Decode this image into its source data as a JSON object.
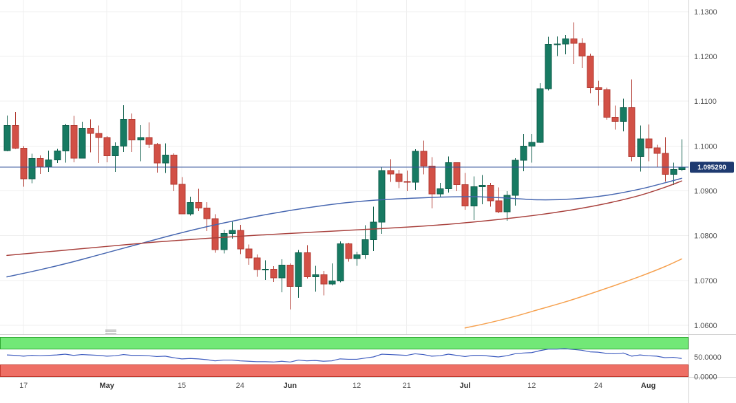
{
  "style": {
    "bg": "#ffffff",
    "grid": "#efefef",
    "separator": "#cfcfcf",
    "axis_text": "#555555",
    "bull_fill": "#177a62",
    "bull_stroke": "#0f5f4c",
    "bear_fill": "#d25046",
    "bear_stroke": "#b13a31",
    "ma_blue": "#4666b0",
    "ma_red": "#a8403c",
    "ma_orange": "#f6a14f",
    "price_line": "#35569b",
    "badge_bg": "#1e3a70",
    "badge_text": "#ffffff",
    "rsi_line": "#3d5bbf",
    "ob_fill": "#72e877",
    "ob_stroke": "#2ca52f",
    "os_fill": "#ee6f65",
    "os_stroke": "#c23a2f",
    "handle": "#999999"
  },
  "chart_data": {
    "type": "candlestick",
    "price_axis": {
      "range": [
        1.058,
        1.1326
      ],
      "ticks": [
        {
          "value": 1.13,
          "label": "1.1300"
        },
        {
          "value": 1.12,
          "label": "1.1200"
        },
        {
          "value": 1.11,
          "label": "1.1100"
        },
        {
          "value": 1.1,
          "label": "1.1000"
        },
        {
          "value": 1.09,
          "label": "1.0900"
        },
        {
          "value": 1.08,
          "label": "1.0800"
        },
        {
          "value": 1.07,
          "label": "1.0700"
        },
        {
          "value": 1.06,
          "label": "1.0600"
        }
      ]
    },
    "current_price": {
      "value": 1.09529,
      "label": "1.095290"
    },
    "x_ticks": [
      {
        "i": 2,
        "label": "17",
        "month": false
      },
      {
        "i": 12,
        "label": "May",
        "month": true
      },
      {
        "i": 21,
        "label": "15",
        "month": false
      },
      {
        "i": 28,
        "label": "24",
        "month": false
      },
      {
        "i": 34,
        "label": "Jun",
        "month": true
      },
      {
        "i": 42,
        "label": "12",
        "month": false
      },
      {
        "i": 48,
        "label": "21",
        "month": false
      },
      {
        "i": 55,
        "label": "Jul",
        "month": true
      },
      {
        "i": 63,
        "label": "12",
        "month": false
      },
      {
        "i": 71,
        "label": "24",
        "month": false
      },
      {
        "i": 77,
        "label": "Aug",
        "month": true
      }
    ],
    "candles": [
      [
        1.099,
        1.1068,
        1.0988,
        1.1046
      ],
      [
        1.1046,
        1.1076,
        1.0994,
        1.0995
      ],
      [
        1.0995,
        1.1,
        1.0909,
        1.0927
      ],
      [
        1.0927,
        1.0983,
        1.0917,
        1.0972
      ],
      [
        1.0972,
        1.0979,
        1.0938,
        1.0954
      ],
      [
        1.0954,
        1.099,
        1.0942,
        1.0969
      ],
      [
        1.0969,
        1.0994,
        1.0962,
        1.0989
      ],
      [
        1.0989,
        1.105,
        1.0963,
        1.1046
      ],
      [
        1.1046,
        1.1067,
        1.0964,
        1.0973
      ],
      [
        1.0973,
        1.1054,
        1.0972,
        1.104
      ],
      [
        1.104,
        1.106,
        1.0986,
        1.1028
      ],
      [
        1.1028,
        1.1046,
        1.0962,
        1.1019
      ],
      [
        1.1019,
        1.1022,
        1.0964,
        1.0978
      ],
      [
        1.0978,
        1.1008,
        1.0942,
        1.1
      ],
      [
        1.1,
        1.1091,
        1.0987,
        1.106
      ],
      [
        1.106,
        1.1073,
        1.0987,
        1.1014
      ],
      [
        1.1014,
        1.1047,
        1.0966,
        1.1019
      ],
      [
        1.1019,
        1.1053,
        1.0996,
        1.1004
      ],
      [
        1.1004,
        1.1007,
        1.0941,
        1.0962
      ],
      [
        1.0962,
        1.1006,
        1.094,
        1.098
      ],
      [
        1.098,
        1.0984,
        1.0899,
        1.0915
      ],
      [
        1.0915,
        1.0931,
        1.0848,
        1.0849
      ],
      [
        1.0849,
        1.0887,
        1.0845,
        1.0874
      ],
      [
        1.0874,
        1.0905,
        1.0855,
        1.0862
      ],
      [
        1.0862,
        1.0875,
        1.081,
        1.0838
      ],
      [
        1.0838,
        1.0848,
        1.0762,
        1.0769
      ],
      [
        1.0769,
        1.0813,
        1.076,
        1.0805
      ],
      [
        1.0805,
        1.0831,
        1.0793,
        1.0812
      ],
      [
        1.0812,
        1.0824,
        1.0759,
        1.077
      ],
      [
        1.077,
        1.078,
        1.0735,
        1.075
      ],
      [
        1.075,
        1.0758,
        1.0708,
        1.0724
      ],
      [
        1.0724,
        1.0745,
        1.0701,
        1.0725
      ],
      [
        1.0725,
        1.0732,
        1.0697,
        1.0706
      ],
      [
        1.0706,
        1.0747,
        1.0674,
        1.0734
      ],
      [
        1.0734,
        1.0738,
        1.0635,
        1.0687
      ],
      [
        1.0687,
        1.0768,
        1.0661,
        1.0762
      ],
      [
        1.0762,
        1.0779,
        1.0704,
        1.0708
      ],
      [
        1.0708,
        1.0733,
        1.0675,
        1.0713
      ],
      [
        1.0713,
        1.0721,
        1.0667,
        1.0692
      ],
      [
        1.0692,
        1.0738,
        1.0689,
        1.0699
      ],
      [
        1.0699,
        1.0787,
        1.0696,
        1.0782
      ],
      [
        1.0782,
        1.0784,
        1.0742,
        1.0749
      ],
      [
        1.0749,
        1.0764,
        1.0733,
        1.0757
      ],
      [
        1.0757,
        1.0823,
        1.0748,
        1.0791
      ],
      [
        1.0791,
        1.0865,
        1.0766,
        1.083
      ],
      [
        1.083,
        1.0952,
        1.0804,
        1.0945
      ],
      [
        1.0945,
        1.0971,
        1.092,
        1.0938
      ],
      [
        1.0938,
        1.0947,
        1.0906,
        1.0921
      ],
      [
        1.0921,
        1.0945,
        1.0899,
        1.0919
      ],
      [
        1.0919,
        1.0993,
        1.0902,
        1.0988
      ],
      [
        1.0988,
        1.1012,
        1.0937,
        1.0955
      ],
      [
        1.0955,
        1.0975,
        1.0861,
        1.0893
      ],
      [
        1.0893,
        1.0918,
        1.0886,
        1.0905
      ],
      [
        1.0905,
        1.0977,
        1.0896,
        1.0963
      ],
      [
        1.0963,
        1.0964,
        1.0899,
        1.0914
      ],
      [
        1.0914,
        1.094,
        1.0858,
        1.0866
      ],
      [
        1.0866,
        1.0932,
        1.0835,
        1.0909
      ],
      [
        1.0909,
        1.0935,
        1.087,
        1.0912
      ],
      [
        1.0912,
        1.0918,
        1.0865,
        1.0878
      ],
      [
        1.0878,
        1.0908,
        1.085,
        1.0853
      ],
      [
        1.0853,
        1.0899,
        1.0833,
        1.089
      ],
      [
        1.089,
        1.0973,
        1.0867,
        1.0968
      ],
      [
        1.0968,
        1.1027,
        1.0944,
        1.1
      ],
      [
        1.1,
        1.1027,
        1.0963,
        1.1008
      ],
      [
        1.1008,
        1.114,
        1.1007,
        1.1128
      ],
      [
        1.1128,
        1.1244,
        1.1124,
        1.1227
      ],
      [
        1.1227,
        1.1245,
        1.1201,
        1.1228
      ],
      [
        1.1228,
        1.1248,
        1.1205,
        1.1239
      ],
      [
        1.1239,
        1.1276,
        1.1183,
        1.1229
      ],
      [
        1.1229,
        1.1241,
        1.1174,
        1.1201
      ],
      [
        1.1201,
        1.1206,
        1.1118,
        1.113
      ],
      [
        1.113,
        1.1146,
        1.109,
        1.1126
      ],
      [
        1.1126,
        1.113,
        1.1059,
        1.1064
      ],
      [
        1.1064,
        1.109,
        1.1037,
        1.1055
      ],
      [
        1.1055,
        1.1106,
        1.1033,
        1.1086
      ],
      [
        1.1086,
        1.1149,
        1.0966,
        1.0977
      ],
      [
        1.0977,
        1.1046,
        1.0943,
        1.1016
      ],
      [
        1.1016,
        1.1048,
        1.0966,
        1.0996
      ],
      [
        1.0996,
        1.1003,
        1.0952,
        1.0984
      ],
      [
        1.0984,
        1.102,
        1.0921,
        1.0937
      ],
      [
        1.0937,
        1.0963,
        1.0913,
        1.0948
      ],
      [
        1.0948,
        1.1015,
        1.0944,
        1.0953
      ]
    ],
    "overlays": [
      {
        "name": "ma-blue-line",
        "color_key": "ma_blue",
        "points": [
          [
            0,
            1.0708
          ],
          [
            4,
            1.0724
          ],
          [
            8,
            1.0742
          ],
          [
            12,
            1.0762
          ],
          [
            16,
            1.0782
          ],
          [
            20,
            1.0802
          ],
          [
            24,
            1.082
          ],
          [
            28,
            1.0836
          ],
          [
            32,
            1.085
          ],
          [
            36,
            1.0862
          ],
          [
            40,
            1.0872
          ],
          [
            44,
            1.0879
          ],
          [
            48,
            1.0883
          ],
          [
            52,
            1.0886
          ],
          [
            56,
            1.0887
          ],
          [
            60,
            1.0884
          ],
          [
            64,
            1.088
          ],
          [
            68,
            1.0882
          ],
          [
            72,
            1.089
          ],
          [
            76,
            1.0904
          ],
          [
            79,
            1.0918
          ],
          [
            81,
            1.0928
          ]
        ]
      },
      {
        "name": "ma-red-line",
        "color_key": "ma_red",
        "points": [
          [
            0,
            1.0756
          ],
          [
            6,
            1.0766
          ],
          [
            12,
            1.0776
          ],
          [
            18,
            1.0786
          ],
          [
            24,
            1.0794
          ],
          [
            30,
            1.0801
          ],
          [
            36,
            1.0807
          ],
          [
            42,
            1.0813
          ],
          [
            48,
            1.0819
          ],
          [
            54,
            1.0827
          ],
          [
            60,
            1.0838
          ],
          [
            64,
            1.0847
          ],
          [
            68,
            1.0858
          ],
          [
            72,
            1.0872
          ],
          [
            76,
            1.089
          ],
          [
            79,
            1.0908
          ],
          [
            81,
            1.0922
          ]
        ]
      },
      {
        "name": "ma-orange-line",
        "color_key": "ma_orange",
        "points": [
          [
            55,
            1.0594
          ],
          [
            58,
            1.0606
          ],
          [
            61,
            1.062
          ],
          [
            64,
            1.0636
          ],
          [
            67,
            1.0652
          ],
          [
            70,
            1.067
          ],
          [
            73,
            1.0689
          ],
          [
            76,
            1.0709
          ],
          [
            79,
            1.0731
          ],
          [
            81,
            1.0748
          ]
        ]
      }
    ],
    "indicator": {
      "type": "oscillator",
      "range": [
        0,
        100
      ],
      "bands": [
        {
          "name": "overbought-zone",
          "from": 70,
          "to": 100,
          "fill_key": "ob_fill",
          "stroke_key": "ob_stroke"
        },
        {
          "name": "oversold-zone",
          "from": 0,
          "to": 30,
          "fill_key": "os_fill",
          "stroke_key": "os_stroke"
        }
      ],
      "ticks": [
        {
          "value": 50,
          "label": "50.0000"
        },
        {
          "value": 0,
          "label": "0.0000"
        }
      ],
      "values": [
        55,
        54,
        52,
        54,
        53,
        54,
        55,
        57,
        54,
        56,
        55,
        54,
        52,
        53,
        56,
        54,
        54,
        53,
        51,
        52,
        48,
        45,
        46,
        45,
        43,
        40,
        42,
        42,
        40,
        39,
        38,
        38,
        37,
        39,
        37,
        42,
        40,
        41,
        39,
        40,
        45,
        44,
        44,
        47,
        50,
        57,
        56,
        55,
        54,
        58,
        56,
        52,
        53,
        57,
        54,
        51,
        54,
        54,
        52,
        50,
        53,
        58,
        60,
        61,
        66,
        70,
        70,
        71,
        69,
        67,
        63,
        62,
        59,
        58,
        60,
        52,
        55,
        53,
        52,
        48,
        49,
        46
      ]
    }
  }
}
